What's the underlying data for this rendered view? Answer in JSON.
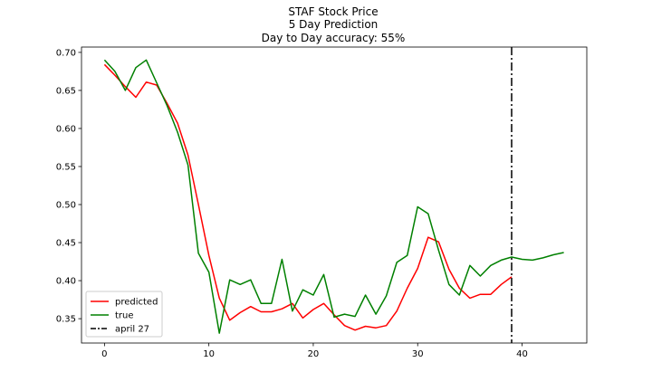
{
  "chart_data": {
    "type": "line",
    "title_lines": [
      "STAF Stock Price",
      "5 Day Prediction",
      "Day to Day accuracy: 55%"
    ],
    "xlabel": "",
    "ylabel": "",
    "xlim": [
      -2.2,
      46.2
    ],
    "ylim": [
      0.318,
      0.707
    ],
    "x_ticks": [
      0,
      10,
      20,
      30,
      40
    ],
    "y_ticks": [
      0.35,
      0.4,
      0.45,
      0.5,
      0.55,
      0.6,
      0.65,
      0.7
    ],
    "grid": false,
    "legend_position": "lower-left",
    "series": [
      {
        "name": "predicted",
        "color": "#ff0000",
        "x": [
          0,
          1,
          2,
          3,
          4,
          5,
          6,
          7,
          8,
          9,
          10,
          11,
          12,
          13,
          14,
          15,
          16,
          17,
          18,
          19,
          20,
          21,
          22,
          23,
          24,
          25,
          26,
          27,
          28,
          29,
          30,
          31,
          32,
          33,
          34,
          35,
          36,
          37,
          38,
          39
        ],
        "y": [
          0.684,
          0.67,
          0.655,
          0.641,
          0.661,
          0.657,
          0.633,
          0.607,
          0.565,
          0.5,
          0.433,
          0.377,
          0.348,
          0.358,
          0.366,
          0.359,
          0.359,
          0.363,
          0.37,
          0.351,
          0.362,
          0.37,
          0.355,
          0.341,
          0.335,
          0.34,
          0.338,
          0.341,
          0.36,
          0.39,
          0.416,
          0.457,
          0.451,
          0.415,
          0.39,
          0.377,
          0.382,
          0.382,
          0.395,
          0.405
        ]
      },
      {
        "name": "true",
        "color": "#008000",
        "x": [
          0,
          1,
          2,
          3,
          4,
          5,
          6,
          7,
          8,
          9,
          10,
          11,
          12,
          13,
          14,
          15,
          16,
          17,
          18,
          19,
          20,
          21,
          22,
          23,
          24,
          25,
          26,
          27,
          28,
          29,
          30,
          31,
          32,
          33,
          34,
          35,
          36,
          37,
          38,
          39,
          40,
          41,
          42,
          43,
          44
        ],
        "y": [
          0.69,
          0.675,
          0.65,
          0.68,
          0.69,
          0.66,
          0.63,
          0.595,
          0.552,
          0.436,
          0.411,
          0.331,
          0.401,
          0.395,
          0.401,
          0.37,
          0.37,
          0.428,
          0.36,
          0.388,
          0.381,
          0.408,
          0.352,
          0.356,
          0.353,
          0.381,
          0.356,
          0.38,
          0.424,
          0.433,
          0.497,
          0.488,
          0.44,
          0.395,
          0.381,
          0.42,
          0.406,
          0.42,
          0.427,
          0.431,
          0.428,
          0.427,
          0.43,
          0.434,
          0.437
        ]
      }
    ],
    "vline": {
      "name": "april 27",
      "x": 39,
      "color": "#000000",
      "style": "dash-dot"
    }
  }
}
